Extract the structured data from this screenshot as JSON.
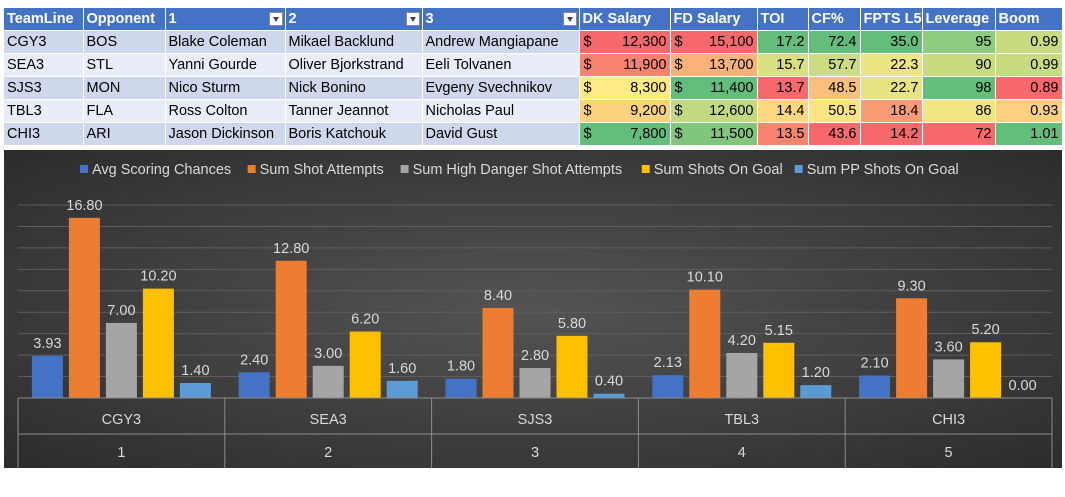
{
  "table": {
    "headers": [
      "TeamLine",
      "Opponent",
      "1",
      "2",
      "3",
      "DK Salary",
      "FD Salary",
      "TOI",
      "CF%",
      "FPTS L5",
      "Leverage",
      "Boom"
    ],
    "rows": [
      {
        "team": "CGY3",
        "opp": "BOS",
        "p1": "Blake Coleman",
        "p2": "Mikael Backlund",
        "p3": "Andrew Mangiapane",
        "dk_cur": "$",
        "dk": "12,300",
        "fd_cur": "$",
        "fd": "15,100",
        "toi": "17.2",
        "cf": "72.4",
        "fpts": "35.0",
        "lev": "95",
        "boom": "0.99"
      },
      {
        "team": "SEA3",
        "opp": "STL",
        "p1": "Yanni Gourde",
        "p2": "Oliver Bjorkstrand",
        "p3": "Eeli Tolvanen",
        "dk_cur": "$",
        "dk": "11,900",
        "fd_cur": "$",
        "fd": "13,700",
        "toi": "15.7",
        "cf": "57.7",
        "fpts": "22.3",
        "lev": "90",
        "boom": "0.99"
      },
      {
        "team": "SJS3",
        "opp": "MON",
        "p1": "Nico Sturm",
        "p2": "Nick Bonino",
        "p3": "Evgeny Svechnikov",
        "dk_cur": "$",
        "dk": "8,300",
        "fd_cur": "$",
        "fd": "11,400",
        "toi": "13.7",
        "cf": "48.5",
        "fpts": "22.7",
        "lev": "98",
        "boom": "0.89"
      },
      {
        "team": "TBL3",
        "opp": "FLA",
        "p1": "Ross Colton",
        "p2": "Tanner Jeannot",
        "p3": "Nicholas Paul",
        "dk_cur": "$",
        "dk": "9,200",
        "fd_cur": "$",
        "fd": "12,600",
        "toi": "14.4",
        "cf": "50.5",
        "fpts": "18.4",
        "lev": "86",
        "boom": "0.93"
      },
      {
        "team": "CHI3",
        "opp": "ARI",
        "p1": "Jason Dickinson",
        "p2": "Boris Katchouk",
        "p3": "David Gust",
        "dk_cur": "$",
        "dk": "7,800",
        "fd_cur": "$",
        "fd": "11,500",
        "toi": "13.5",
        "cf": "43.6",
        "fpts": "14.2",
        "lev": "72",
        "boom": "1.01"
      }
    ],
    "cell_colors": {
      "dk": [
        "#f8696b",
        "#f8836f",
        "#ffeb84",
        "#fbd37e",
        "#63be7b"
      ],
      "fd": [
        "#f8696b",
        "#fbb279",
        "#63be7b",
        "#c1da81",
        "#80c77d"
      ],
      "toi": [
        "#63be7b",
        "#d9e082",
        "#f8696b",
        "#ffd781",
        "#f98470"
      ],
      "cf": [
        "#63be7b",
        "#cbdc81",
        "#fdc07c",
        "#fee382",
        "#f8696b"
      ],
      "fpts": [
        "#63be7b",
        "#ece582",
        "#e7e482",
        "#f99b74",
        "#f8696b"
      ],
      "lev": [
        "#8fcb7e",
        "#c7db81",
        "#63be7b",
        "#f0e583",
        "#f8696b"
      ],
      "boom": [
        "#c9db81",
        "#c9db81",
        "#f8696b",
        "#fdd17f",
        "#63be7b"
      ]
    }
  },
  "chart_data": {
    "type": "bar",
    "categories": [
      "CGY3",
      "SEA3",
      "SJS3",
      "TBL3",
      "CHI3"
    ],
    "category_sublabels": [
      "1",
      "2",
      "3",
      "4",
      "5"
    ],
    "series": [
      {
        "name": "Avg Scoring Chances",
        "values": [
          3.93,
          2.4,
          1.8,
          2.13,
          2.1
        ],
        "labels": [
          "3.93",
          "2.40",
          "1.80",
          "2.13",
          "2.10"
        ],
        "color": "#4472c4"
      },
      {
        "name": "Sum Shot Attempts",
        "values": [
          16.8,
          12.8,
          8.4,
          10.1,
          9.3
        ],
        "labels": [
          "16.80",
          "12.80",
          "8.40",
          "10.10",
          "9.30"
        ],
        "color": "#ed7d31"
      },
      {
        "name": "Sum High Danger Shot Attempts",
        "values": [
          7.0,
          3.0,
          2.8,
          4.2,
          3.6
        ],
        "labels": [
          "7.00",
          "3.00",
          "2.80",
          "4.20",
          "3.60"
        ],
        "color": "#a5a5a5"
      },
      {
        "name": "Sum Shots On Goal",
        "values": [
          10.2,
          6.2,
          5.8,
          5.15,
          5.2
        ],
        "labels": [
          "10.20",
          "6.20",
          "5.80",
          "5.15",
          "5.20"
        ],
        "color": "#ffc000"
      },
      {
        "name": "Sum PP Shots On Goal",
        "values": [
          1.4,
          1.6,
          0.4,
          1.2,
          0.0
        ],
        "labels": [
          "1.40",
          "1.60",
          "0.40",
          "1.20",
          "0.00"
        ],
        "color": "#5b9bd5"
      }
    ],
    "ylim": [
      0,
      18
    ],
    "grid": true,
    "legend": "top"
  }
}
